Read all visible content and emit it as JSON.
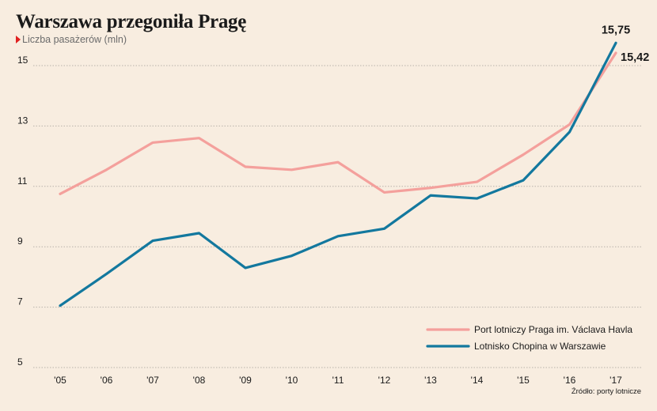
{
  "title": "Warszawa przegoniła Pragę",
  "subtitle": "Liczba pasażerów (mln)",
  "source": "Źródło: porty lotnicze",
  "colors": {
    "praga": "#f4a09c",
    "warszawa": "#13789e",
    "marker": "#e02020"
  },
  "chart_data": {
    "type": "line",
    "title": "Warszawa przegoniła Pragę",
    "ylabel": "Liczba pasażerów (mln)",
    "categories": [
      "'05",
      "'06",
      "'07",
      "'08",
      "'09",
      "'10",
      "'11",
      "'12",
      "'13",
      "'14",
      "'15",
      "'16",
      "'17"
    ],
    "ylim": [
      5,
      16
    ],
    "yticks": [
      5,
      7,
      9,
      11,
      13,
      15
    ],
    "grid": true,
    "legend": "bottom-right",
    "series": [
      {
        "name": "Port lotniczy Praga im. Václava Havla",
        "key": "praga",
        "values": [
          10.75,
          11.55,
          12.45,
          12.6,
          11.65,
          11.55,
          11.8,
          10.8,
          10.95,
          11.15,
          12.05,
          13.05,
          15.42
        ]
      },
      {
        "name": "Lotnisko Chopina w Warszawie",
        "key": "warszawa",
        "values": [
          7.05,
          8.1,
          9.2,
          9.45,
          8.3,
          8.7,
          9.35,
          9.6,
          10.7,
          10.6,
          11.2,
          12.8,
          15.75
        ]
      }
    ],
    "end_labels": [
      {
        "series": "warszawa",
        "text": "15,75"
      },
      {
        "series": "praga",
        "text": "15,42"
      }
    ]
  }
}
